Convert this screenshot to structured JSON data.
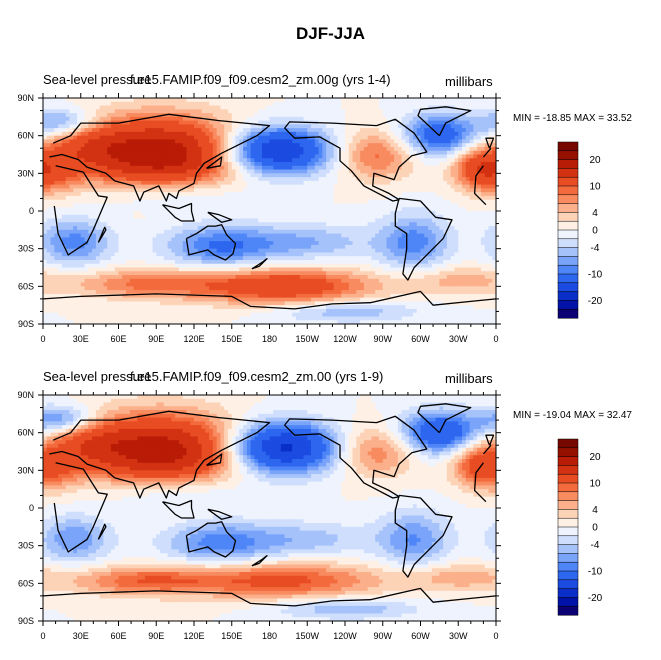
{
  "figure": {
    "title": "DJF-JJA"
  },
  "colors": {
    "levels": [
      "#0b0074",
      "#0012a8",
      "#0a2fc8",
      "#1b4be0",
      "#2e67ef",
      "#4f86f7",
      "#7aa4f9",
      "#a6c2fb",
      "#cfdefd",
      "#eef3fe",
      "#fef0e4",
      "#fdd3b7",
      "#fbb08b",
      "#f88b5f",
      "#f36a3d",
      "#e84c22",
      "#d33212",
      "#b81b06",
      "#961000",
      "#770800"
    ],
    "land": "#000000"
  },
  "chart_data": [
    {
      "type": "heatmap",
      "left_title": "Sea-level pressure",
      "center_title": "f.e15.FAMIP.f09_f09.cesm2_zm.00g (yrs 1-4)",
      "right_title": "millibars",
      "minmax_label": "MIN = -18.85 MAX =  33.52",
      "min": -18.85,
      "max": 33.52,
      "x_ticks": [
        "0",
        "30E",
        "60E",
        "90E",
        "120E",
        "150E",
        "180",
        "150W",
        "120W",
        "90W",
        "60W",
        "30W",
        "0"
      ],
      "y_ticks": [
        "90N",
        "60N",
        "30N",
        "0",
        "30S",
        "60S",
        "90S"
      ],
      "colorbar_ticks": [
        "20",
        "10",
        "4",
        "0",
        "-4",
        "-10",
        "-20"
      ],
      "field_blobs": [
        {
          "lon": 95,
          "lat": 45,
          "amp": 24,
          "slon": 42,
          "slat": 20
        },
        {
          "lon": 35,
          "lat": 52,
          "amp": 8,
          "slon": 25,
          "slat": 14
        },
        {
          "lon": 5,
          "lat": 30,
          "amp": 8,
          "slon": 18,
          "slat": 12
        },
        {
          "lon": 345,
          "lat": 35,
          "amp": 10,
          "slon": 15,
          "slat": 12
        },
        {
          "lon": 265,
          "lat": 45,
          "amp": 9,
          "slon": 22,
          "slat": 14
        },
        {
          "lon": 185,
          "lat": 48,
          "amp": -21,
          "slon": 30,
          "slat": 13
        },
        {
          "lon": 315,
          "lat": 60,
          "amp": -13,
          "slon": 22,
          "slat": 12
        },
        {
          "lon": 15,
          "lat": 70,
          "amp": -9,
          "slon": 20,
          "slat": 8
        },
        {
          "lon": 100,
          "lat": 15,
          "amp": -6,
          "slon": 40,
          "slat": 10
        },
        {
          "lon": 140,
          "lat": -28,
          "amp": -10,
          "slon": 30,
          "slat": 12
        },
        {
          "lon": 25,
          "lat": -25,
          "amp": -9,
          "slon": 20,
          "slat": 13
        },
        {
          "lon": 295,
          "lat": -25,
          "amp": -9,
          "slon": 20,
          "slat": 16
        },
        {
          "lon": 210,
          "lat": -25,
          "amp": -6,
          "slon": 35,
          "slat": 10
        },
        {
          "lon": 190,
          "lat": -60,
          "amp": 14,
          "slon": 50,
          "slat": 10
        },
        {
          "lon": 80,
          "lat": -58,
          "amp": 8,
          "slon": 40,
          "slat": 8
        },
        {
          "lon": 330,
          "lat": -55,
          "amp": 5,
          "slon": 30,
          "slat": 8
        },
        {
          "lon": 240,
          "lat": -80,
          "amp": -6,
          "slon": 40,
          "slat": 6
        }
      ]
    },
    {
      "type": "heatmap",
      "left_title": "Sea-level pressure",
      "center_title": "f.e15.FAMIP.f09_f09.cesm2_zm.00 (yrs 1-9)",
      "right_title": "millibars",
      "minmax_label": "MIN = -19.04 MAX =  32.47",
      "min": -19.04,
      "max": 32.47,
      "x_ticks": [
        "0",
        "30E",
        "60E",
        "90E",
        "120E",
        "150E",
        "180",
        "150W",
        "120W",
        "90W",
        "60W",
        "30W",
        "0"
      ],
      "y_ticks": [
        "90N",
        "60N",
        "30N",
        "0",
        "30S",
        "60S",
        "90S"
      ],
      "colorbar_ticks": [
        "20",
        "10",
        "4",
        "0",
        "-4",
        "-10",
        "-20"
      ],
      "field_blobs": [
        {
          "lon": 95,
          "lat": 45,
          "amp": 23,
          "slon": 42,
          "slat": 20
        },
        {
          "lon": 35,
          "lat": 52,
          "amp": 8,
          "slon": 25,
          "slat": 14
        },
        {
          "lon": 5,
          "lat": 30,
          "amp": 7,
          "slon": 18,
          "slat": 12
        },
        {
          "lon": 345,
          "lat": 35,
          "amp": 9,
          "slon": 15,
          "slat": 12
        },
        {
          "lon": 265,
          "lat": 45,
          "amp": 8,
          "slon": 22,
          "slat": 14
        },
        {
          "lon": 190,
          "lat": 48,
          "amp": -22,
          "slon": 30,
          "slat": 14
        },
        {
          "lon": 315,
          "lat": 60,
          "amp": -15,
          "slon": 22,
          "slat": 12
        },
        {
          "lon": 15,
          "lat": 70,
          "amp": -10,
          "slon": 20,
          "slat": 8
        },
        {
          "lon": 100,
          "lat": 15,
          "amp": -6,
          "slon": 40,
          "slat": 10
        },
        {
          "lon": 140,
          "lat": -28,
          "amp": -9,
          "slon": 30,
          "slat": 12
        },
        {
          "lon": 25,
          "lat": -25,
          "amp": -8,
          "slon": 20,
          "slat": 13
        },
        {
          "lon": 295,
          "lat": -25,
          "amp": -8,
          "slon": 20,
          "slat": 16
        },
        {
          "lon": 210,
          "lat": -25,
          "amp": -5,
          "slon": 35,
          "slat": 10
        },
        {
          "lon": 190,
          "lat": -58,
          "amp": 11,
          "slon": 55,
          "slat": 10
        },
        {
          "lon": 80,
          "lat": -58,
          "amp": 9,
          "slon": 40,
          "slat": 8
        },
        {
          "lon": 330,
          "lat": -55,
          "amp": 5,
          "slon": 30,
          "slat": 8
        },
        {
          "lon": 240,
          "lat": -80,
          "amp": -6,
          "slon": 40,
          "slat": 6
        }
      ]
    }
  ]
}
